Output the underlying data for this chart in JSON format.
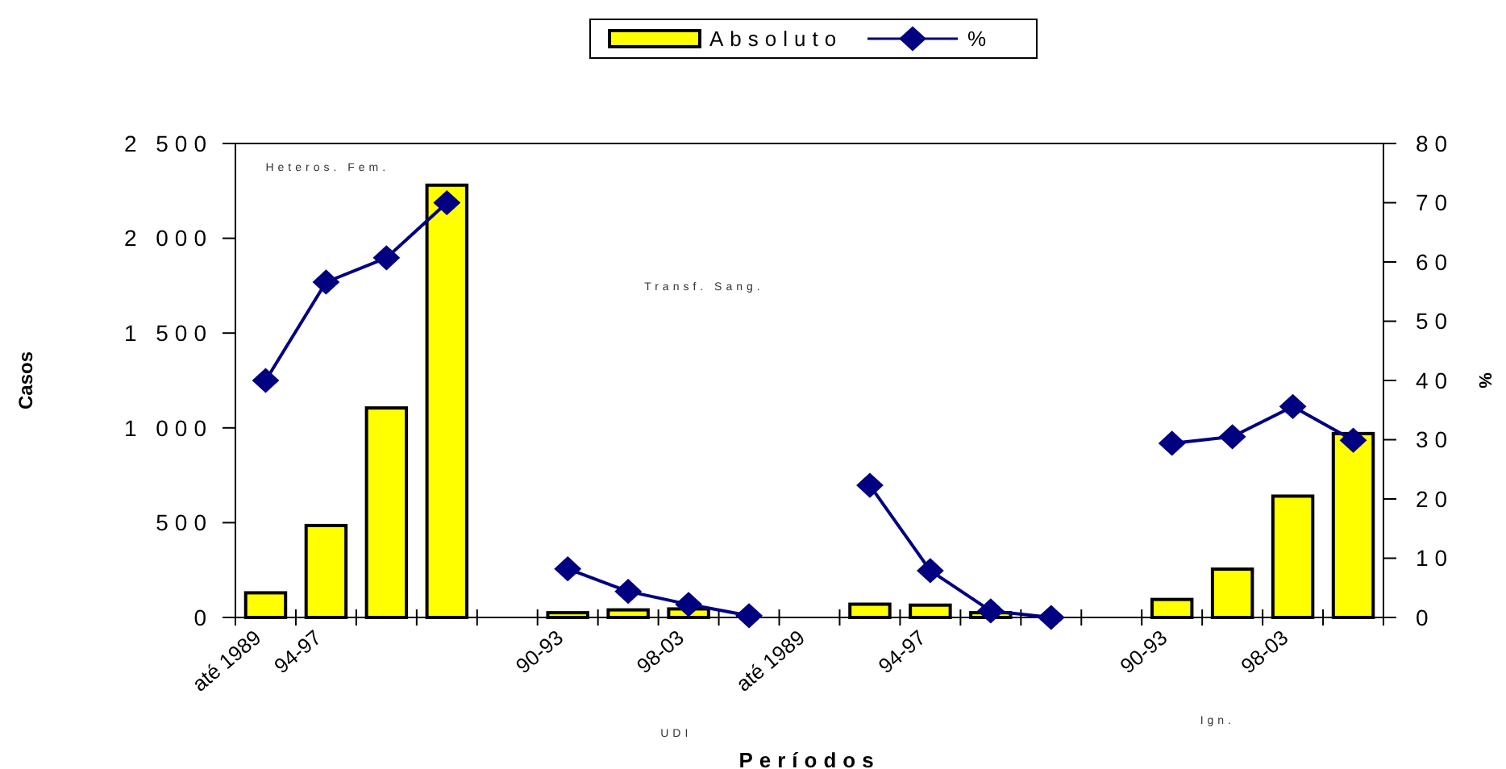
{
  "chart_data": {
    "type": "bar",
    "xlabel": "Períodos",
    "ylabel": "Casos",
    "y2label": "%",
    "categories": [
      "até 1989",
      "94-97",
      null,
      null,
      null,
      "90-93",
      null,
      "98-03",
      null,
      "até 1989",
      null,
      "94-97",
      null,
      null,
      null,
      "90-93",
      null,
      "98-03",
      null
    ],
    "series": [
      {
        "name": "Absoluto",
        "color": "#ffff00",
        "values": [
          130,
          485,
          1105,
          2280,
          null,
          25,
          40,
          45,
          null,
          null,
          70,
          65,
          25,
          0,
          null,
          95,
          255,
          640,
          970
        ]
      },
      {
        "name": "%",
        "type": "line",
        "axis": "y2",
        "color": "#000080",
        "marker": "diamond",
        "values": [
          40,
          56.6,
          60.7,
          70,
          null,
          8.2,
          4.4,
          2.2,
          0.3,
          null,
          22.3,
          7.9,
          1.1,
          0,
          null,
          29.4,
          30.5,
          35.6,
          29.9
        ]
      }
    ],
    "ylim": [
      0,
      2500
    ],
    "yticks": [
      0,
      {
        "value": 500,
        "label": "500"
      },
      {
        "value": 1000,
        "label": "1 000"
      },
      {
        "value": 1500,
        "label": "1 500"
      },
      {
        "value": 2000,
        "label": "2 000"
      },
      {
        "value": 2500,
        "label": "2 500"
      }
    ],
    "y2lim": [
      0,
      80
    ],
    "y2ticks": [
      0,
      10,
      20,
      30,
      40,
      50,
      60,
      70,
      80
    ],
    "legend": "top",
    "grid": false,
    "annotations": [
      "Heteros. Fem.",
      "Transf. Sang.",
      "UDI",
      "Ign."
    ]
  }
}
